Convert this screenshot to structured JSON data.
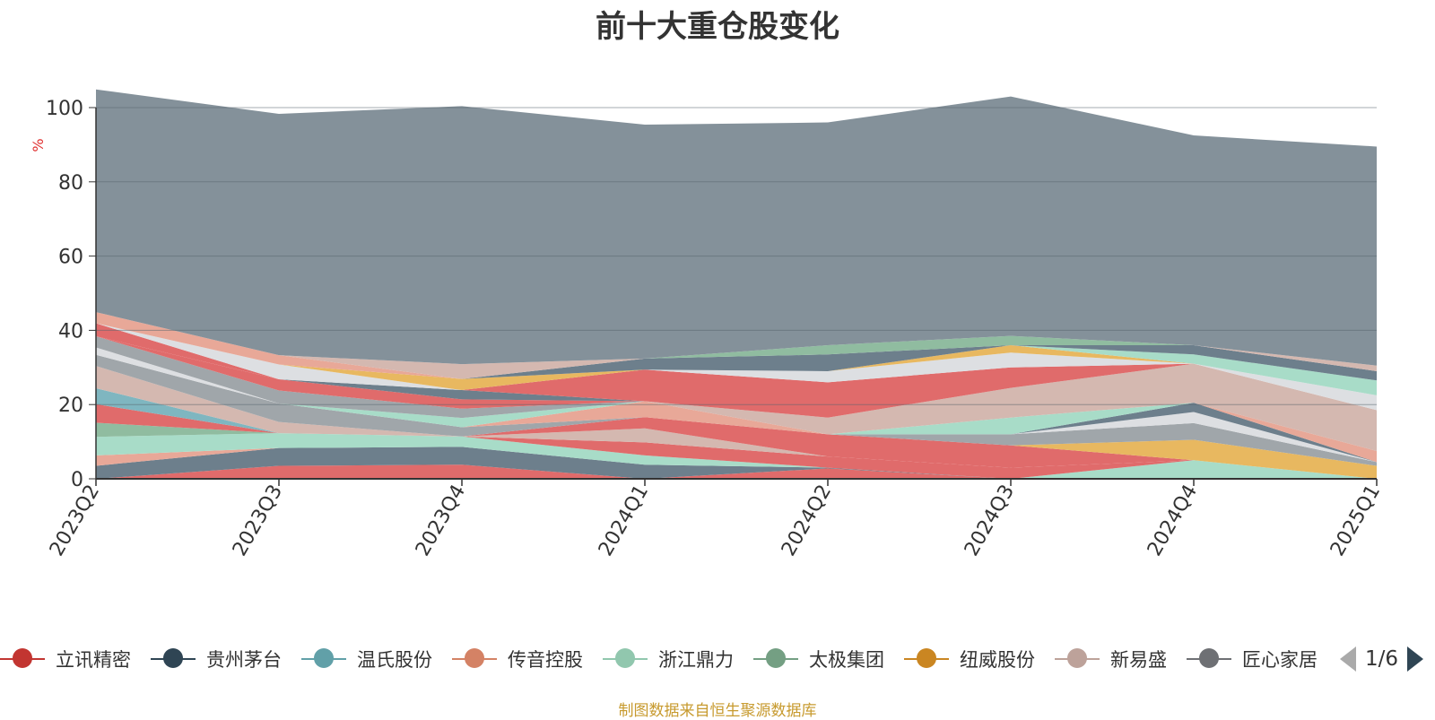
{
  "title": "前十大重仓股变化",
  "source_note": "制图数据来自恒生聚源数据库",
  "pager": {
    "text": "1/6"
  },
  "colors": {
    "background_area": "#84919a",
    "axis": "#333333",
    "unit_label": "#e03030",
    "source_note": "#c79a2e"
  },
  "legend": [
    {
      "name": "立讯精密",
      "color": "#c23531"
    },
    {
      "name": "贵州茅台",
      "color": "#2f4554"
    },
    {
      "name": "温氏股份",
      "color": "#61a0a8"
    },
    {
      "name": "传音控股",
      "color": "#d48265"
    },
    {
      "name": "浙江鼎力",
      "color": "#91c7ae"
    },
    {
      "name": "太极集团",
      "color": "#749f83"
    },
    {
      "name": "纽威股份",
      "color": "#ca8622"
    },
    {
      "name": "新易盛",
      "color": "#bda29a"
    },
    {
      "name": "匠心家居",
      "color": "#6e7074"
    }
  ],
  "chart_data": {
    "type": "area",
    "stacked": true,
    "title": "前十大重仓股变化",
    "ylabel": "%",
    "ylim": [
      0,
      100
    ],
    "yticks": [
      0,
      20,
      40,
      60,
      80,
      100
    ],
    "grid": true,
    "legend_position": "bottom",
    "categories": [
      "2023Q2",
      "2023Q3",
      "2023Q4",
      "2024Q1",
      "2024Q2",
      "2024Q3",
      "2024Q4",
      "2025Q1"
    ],
    "series": [
      {
        "color": "#e06b6b",
        "values": [
          0,
          3.5,
          3.8,
          0,
          2.8,
          0,
          0,
          0
        ]
      },
      {
        "color": "#6d7f8c",
        "values": [
          3.5,
          4.8,
          4.8,
          3.8,
          0.2,
          0,
          0,
          0
        ]
      },
      {
        "color": "#e8a898",
        "values": [
          2.8,
          0,
          0,
          0,
          0,
          0,
          0,
          0
        ]
      },
      {
        "color": "#a8dcc8",
        "values": [
          5.0,
          4.0,
          2.8,
          2.5,
          0,
          0,
          5.0,
          0
        ]
      },
      {
        "color": "#90bca0",
        "values": [
          3.8,
          0,
          0,
          0,
          0,
          0,
          0,
          0
        ]
      },
      {
        "color": "#e06b6b",
        "values": [
          5.0,
          0,
          0,
          3.5,
          3.0,
          3.0,
          0,
          0
        ]
      },
      {
        "color": "#7fb6c0",
        "values": [
          4.3,
          0,
          0,
          0,
          0,
          0,
          0,
          0
        ]
      },
      {
        "color": "#d4b8b0",
        "values": [
          6.0,
          3.0,
          0,
          3.8,
          0,
          0,
          0,
          0
        ]
      },
      {
        "color": "#e06b6b",
        "values": [
          0,
          0,
          0,
          3.0,
          6.0,
          6.0,
          0,
          0
        ]
      },
      {
        "color": "#e8b860",
        "values": [
          0,
          0,
          0,
          0,
          0,
          0,
          5.5,
          3.5
        ]
      },
      {
        "color": "#a0a6aa",
        "values": [
          3.0,
          5.0,
          2.5,
          0,
          0,
          3.0,
          4.5,
          1.0
        ]
      },
      {
        "color": "#dddfe2",
        "values": [
          2.0,
          0,
          0,
          0,
          0,
          0,
          3.0,
          0
        ]
      },
      {
        "color": "#6d7f8c",
        "values": [
          0,
          0,
          0,
          0,
          0,
          0,
          2.5,
          0
        ]
      },
      {
        "color": "#e8a898",
        "values": [
          0,
          0,
          0,
          4.3,
          0,
          0,
          0,
          3.0
        ]
      },
      {
        "color": "#a8dcc8",
        "values": [
          0,
          0,
          2.5,
          0,
          0,
          4.5,
          0,
          0
        ]
      },
      {
        "color": "#d4b8b0",
        "values": [
          0,
          0,
          0,
          0,
          4.5,
          8.0,
          10.5,
          11.0
        ]
      },
      {
        "color": "#a0a6aa",
        "values": [
          3.0,
          3.5,
          2.5,
          0,
          0,
          0,
          0,
          0
        ]
      },
      {
        "color": "#e06b6b",
        "values": [
          0,
          3.0,
          2.5,
          0,
          0,
          0,
          0,
          0
        ]
      },
      {
        "color": "#6d7f8c",
        "values": [
          0,
          0,
          2.5,
          0,
          0,
          0,
          0,
          0
        ]
      },
      {
        "color": "#e06b6b",
        "values": [
          3.5,
          0,
          0,
          8.5,
          9.5,
          5.5,
          0,
          0
        ]
      },
      {
        "color": "#dddfe2",
        "values": [
          0,
          4.0,
          0,
          0,
          3.0,
          4.0,
          0,
          4.0
        ]
      },
      {
        "color": "#e8b860",
        "values": [
          0,
          0,
          3.0,
          0,
          0,
          2.0,
          0,
          0
        ]
      },
      {
        "color": "#a8dcc8",
        "values": [
          0,
          0,
          0,
          0,
          0,
          0,
          2.5,
          4.0
        ]
      },
      {
        "color": "#6d7f8c",
        "values": [
          0,
          0,
          0,
          3.0,
          4.5,
          0,
          2.5,
          2.5
        ]
      },
      {
        "color": "#e8a898",
        "values": [
          3.0,
          2.5,
          0,
          0,
          0,
          0,
          0,
          0
        ]
      },
      {
        "color": "#90bca0",
        "values": [
          0,
          0,
          0,
          0,
          2.5,
          2.5,
          0,
          0
        ]
      },
      {
        "color": "#d4b8b0",
        "values": [
          0,
          0,
          4.0,
          0,
          0,
          0,
          0,
          1.5
        ]
      },
      {
        "color": "#84919a",
        "values": [
          60,
          65,
          69.5,
          63,
          60,
          64.5,
          56.5,
          59
        ]
      }
    ]
  }
}
